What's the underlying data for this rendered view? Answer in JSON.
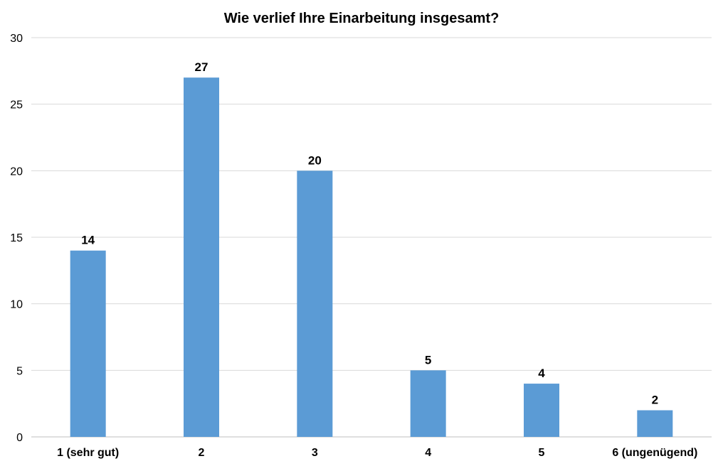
{
  "chart_data": {
    "type": "bar",
    "title": "Wie verlief Ihre Einarbeitung insgesamt?",
    "categories": [
      "1 (sehr gut)",
      "2",
      "3",
      "4",
      "5",
      "6 (ungenügend)"
    ],
    "values": [
      14,
      27,
      20,
      5,
      4,
      2
    ],
    "ylim": [
      0,
      30
    ],
    "yticks": [
      0,
      5,
      10,
      15,
      20,
      25,
      30
    ],
    "grid": true,
    "bar_color": "#5b9bd5",
    "data_labels": true
  }
}
